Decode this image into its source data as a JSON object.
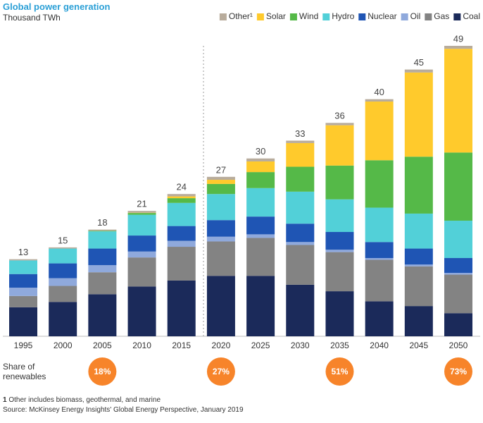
{
  "chart_data": {
    "type": "stacked_bar",
    "title": "Global power generation",
    "subtitle": "Thousand TWh",
    "categories": [
      "1995",
      "2000",
      "2005",
      "2010",
      "2015",
      "2020",
      "2025",
      "2030",
      "2035",
      "2040",
      "2045",
      "2050"
    ],
    "series": [
      {
        "name": "Coal",
        "color": "#1b2a5a",
        "values": [
          4.9,
          5.8,
          7.1,
          8.4,
          9.4,
          10.2,
          10.2,
          8.7,
          7.6,
          5.9,
          5.1,
          3.9
        ]
      },
      {
        "name": "Gas",
        "color": "#838383",
        "values": [
          1.9,
          2.7,
          3.7,
          4.9,
          5.7,
          5.8,
          6.4,
          6.7,
          6.6,
          7.0,
          6.7,
          6.5
        ]
      },
      {
        "name": "Oil",
        "color": "#8fa9dc",
        "values": [
          1.4,
          1.3,
          1.2,
          1.0,
          1.0,
          0.8,
          0.6,
          0.5,
          0.4,
          0.3,
          0.3,
          0.3
        ]
      },
      {
        "name": "Nuclear",
        "color": "#1f55b4",
        "values": [
          2.3,
          2.5,
          2.8,
          2.7,
          2.5,
          2.8,
          3.0,
          3.1,
          3.0,
          2.7,
          2.7,
          2.5
        ]
      },
      {
        "name": "Hydro",
        "color": "#52d0d8",
        "values": [
          2.3,
          2.5,
          2.9,
          3.5,
          3.9,
          4.4,
          4.8,
          5.4,
          5.5,
          5.8,
          5.9,
          6.3
        ]
      },
      {
        "name": "Wind",
        "color": "#55b948",
        "values": [
          0,
          0,
          0.1,
          0.3,
          0.8,
          1.7,
          2.7,
          4.2,
          5.7,
          8.0,
          9.6,
          11.5
        ]
      },
      {
        "name": "Solar",
        "color": "#ffca2c",
        "values": [
          0,
          0,
          0,
          0.05,
          0.3,
          0.7,
          1.8,
          4.0,
          6.8,
          9.9,
          14.2,
          17.5
        ]
      },
      {
        "name": "Other¹",
        "color": "#b8ac9c",
        "values": [
          0.2,
          0.2,
          0.2,
          0.3,
          0.4,
          0.5,
          0.5,
          0.4,
          0.4,
          0.4,
          0.5,
          0.5
        ]
      }
    ],
    "totals": [
      13,
      15,
      18,
      21,
      24,
      27,
      30,
      33,
      36,
      40,
      45,
      49
    ],
    "renewable_share": {
      "title": "Share of renewables",
      "color": "#f7842a",
      "values": [
        null,
        null,
        18,
        null,
        null,
        27,
        null,
        null,
        51,
        null,
        null,
        73
      ],
      "value_labels": [
        null,
        null,
        "18%",
        null,
        null,
        "27%",
        null,
        null,
        "51%",
        null,
        null,
        "73%"
      ]
    },
    "footnote": "Other includes biomass, geothermal, and marine",
    "footnote_marker": "1",
    "source": "Source: McKinsey Energy Insights' Global Energy Perspective, January 2019"
  }
}
